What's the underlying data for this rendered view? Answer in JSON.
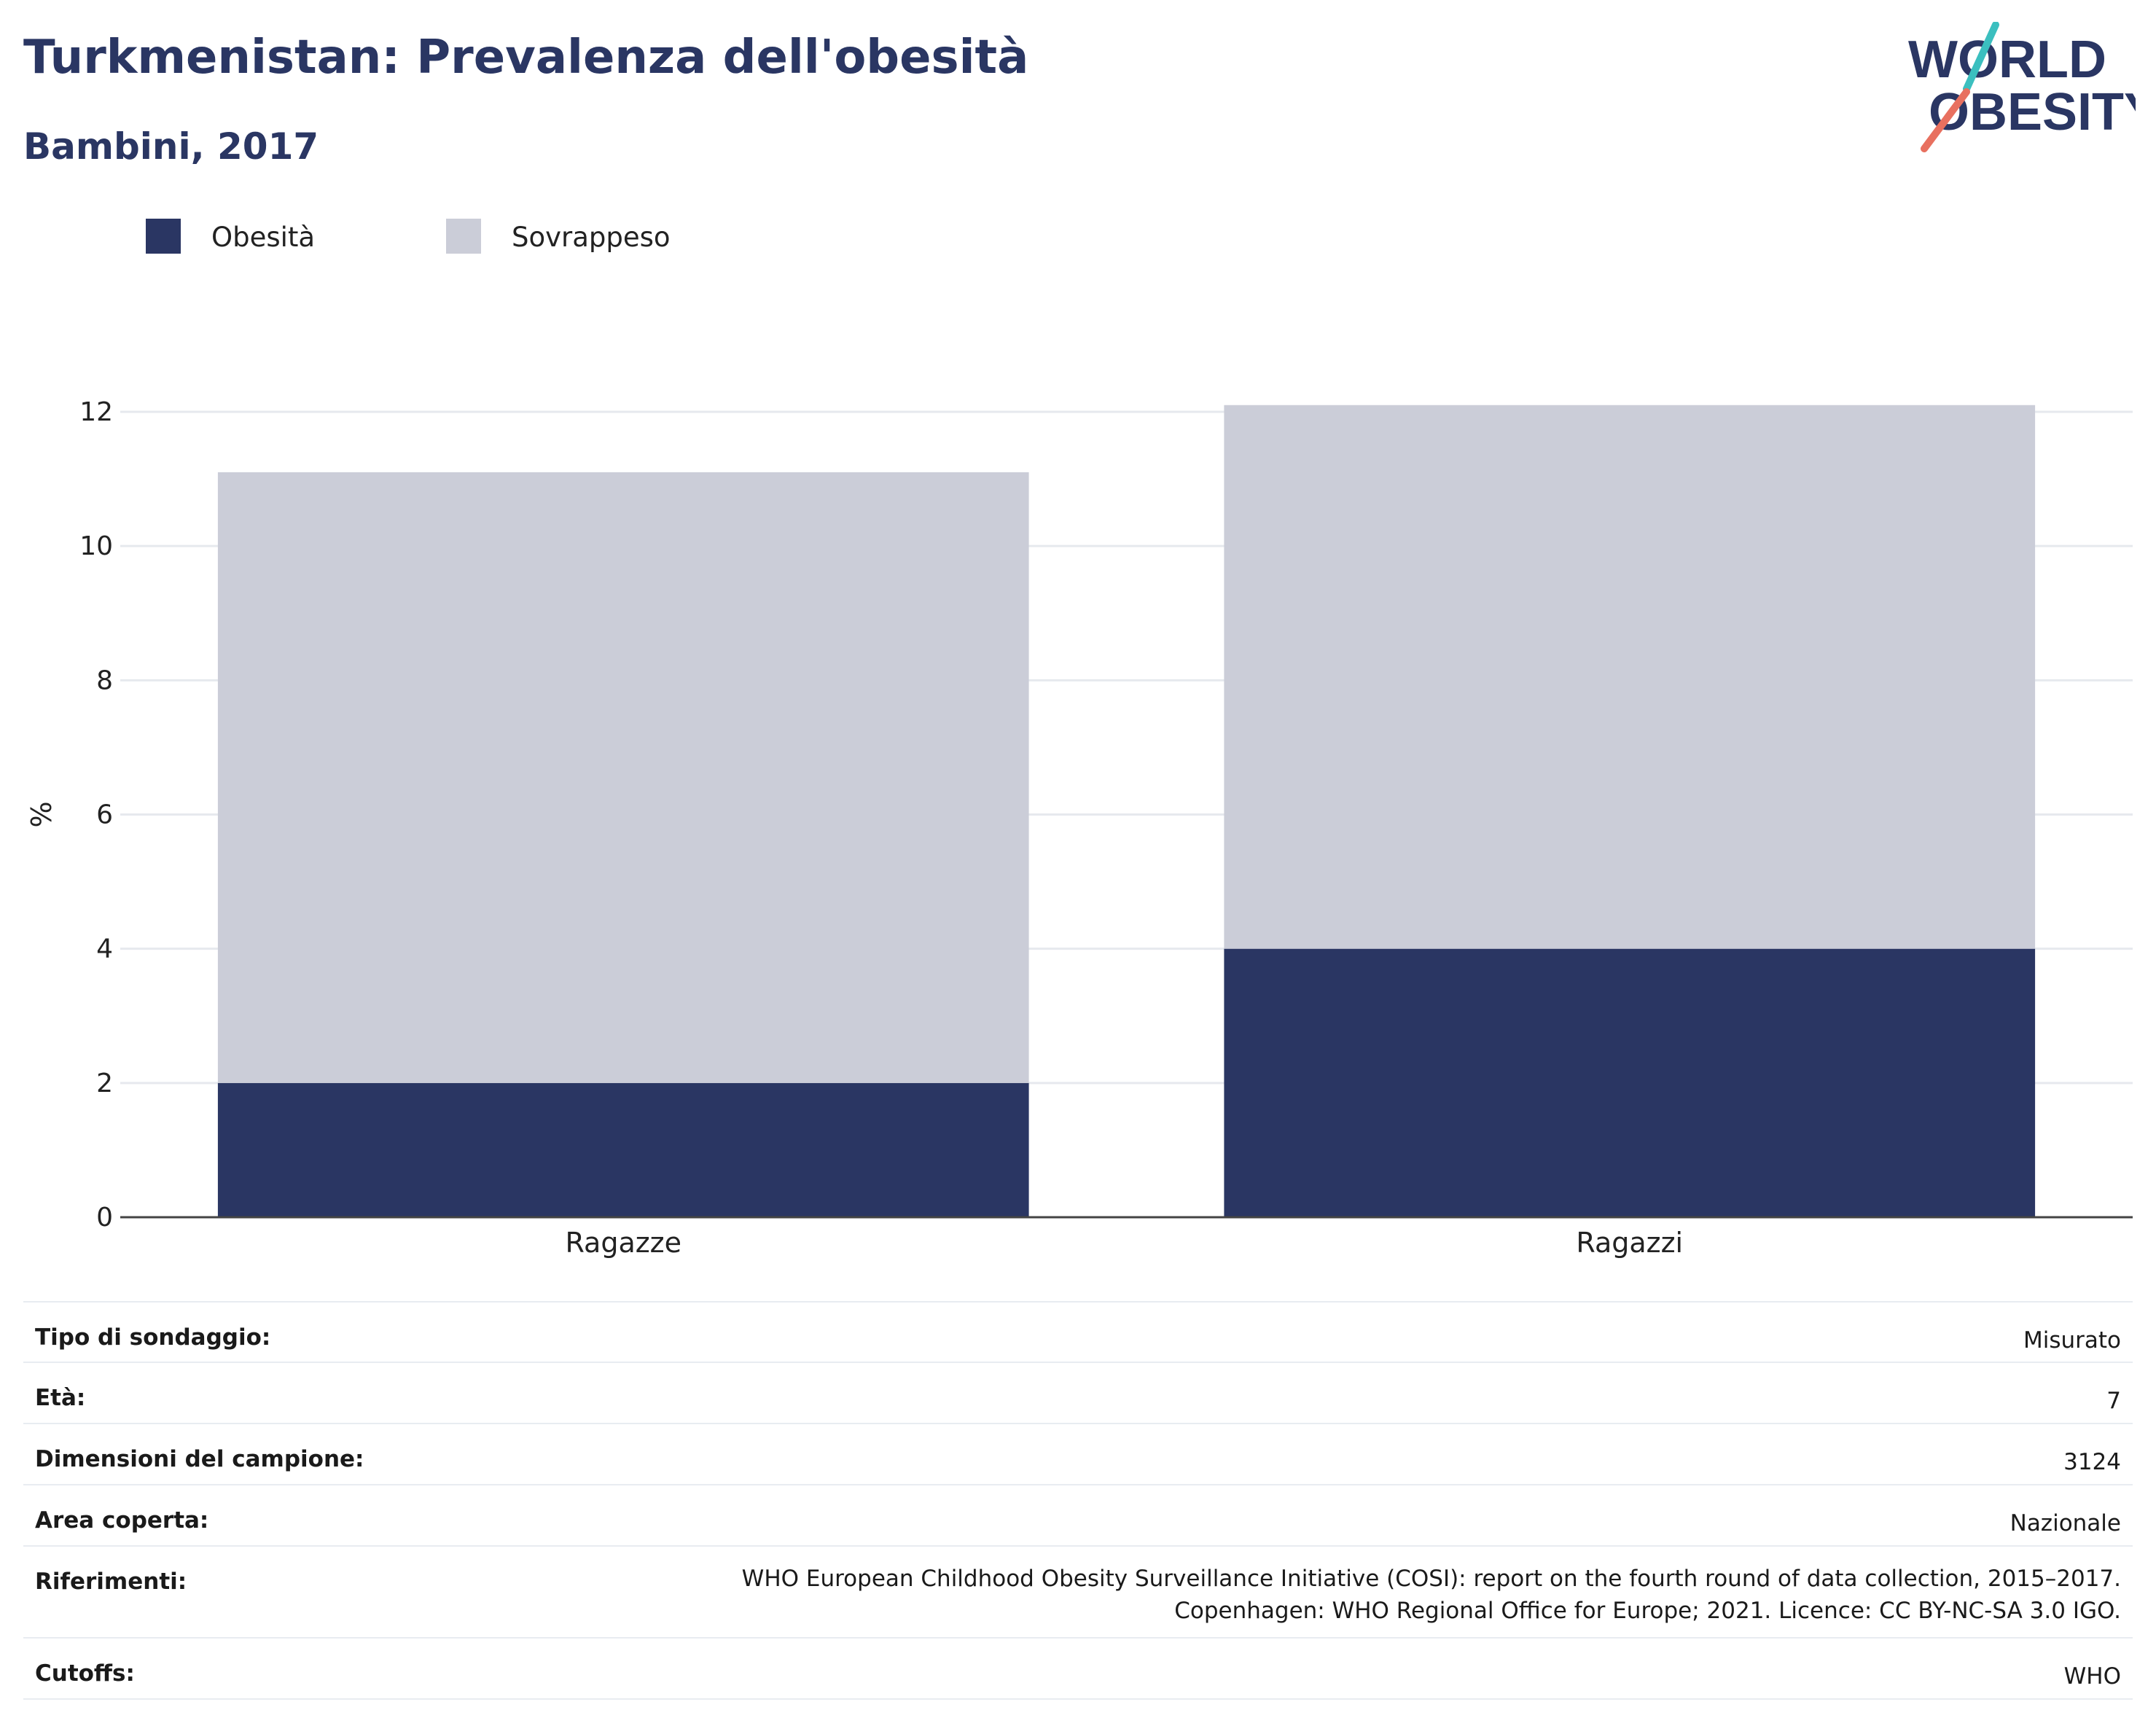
{
  "header": {
    "title": "Turkmenistan: Prevalenza dell'obesità",
    "subtitle": "Bambini, 2017"
  },
  "logo": {
    "line1": "WORLD",
    "line2": "OBESITY",
    "colors": {
      "text": "#2a3663",
      "slash_top": "#3bbfbf",
      "slash_bottom": "#e8705f"
    }
  },
  "legend": {
    "items": [
      {
        "label": "Obesità",
        "color": "#2a3663"
      },
      {
        "label": "Sovrappeso",
        "color": "#cbcdd8"
      }
    ]
  },
  "chart_data": {
    "type": "bar",
    "stacked": true,
    "categories": [
      "Ragazze",
      "Ragazzi"
    ],
    "series": [
      {
        "name": "Obesità",
        "values": [
          2,
          4
        ],
        "color": "#2a3663"
      },
      {
        "name": "Sovrappeso",
        "values": [
          9.1,
          8.1
        ],
        "color": "#cbcdd8"
      }
    ],
    "ylabel": "%",
    "ylim": [
      0,
      12
    ],
    "yticks": [
      0,
      2,
      4,
      6,
      8,
      10,
      12
    ],
    "grid": true,
    "legend_position": "top-left"
  },
  "info": {
    "rows": [
      {
        "label": "Tipo di sondaggio:",
        "value": "Misurato"
      },
      {
        "label": "Età:",
        "value": "7"
      },
      {
        "label": "Dimensioni del campione:",
        "value": "3124"
      },
      {
        "label": "Area coperta:",
        "value": "Nazionale"
      },
      {
        "label": "Riferimenti:",
        "value": "WHO European Childhood Obesity Surveillance Initiative (COSI): report on the fourth round of data collection, 2015–2017. Copenhagen: WHO Regional Office for Europe; 2021. Licence: CC BY-NC-SA 3.0 IGO."
      },
      {
        "label": "Cutoffs:",
        "value": "WHO"
      }
    ]
  }
}
